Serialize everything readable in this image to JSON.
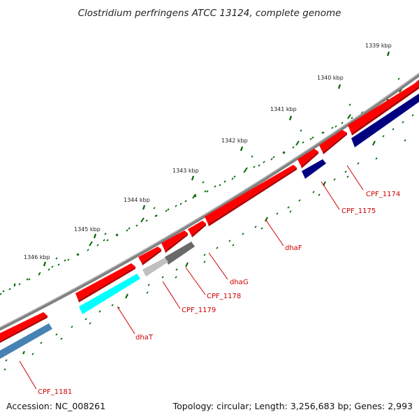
{
  "title": "Clostridium perfringens ATCC 13124, complete genome",
  "footer": {
    "accession": "Accession: NC_008261",
    "summary": "Topology: circular; Length: 3,256,683 bp; Genes: 2,993"
  },
  "colors": {
    "forward_gene": "#ff0000",
    "reverse_gene": "#000080",
    "reverse_gene_alt": "#4682b4",
    "cyan_gene": "#00ffff",
    "light_grey_gene": "#c0c0c0",
    "dark_grey_gene": "#696969",
    "backbone": "#808080",
    "ticks": "#006400",
    "label": "#cc0000"
  },
  "kbp_labels": [
    "1339 kbp",
    "1340 kbp",
    "1341 kbp",
    "1342 kbp",
    "1343 kbp",
    "1344 kbp",
    "1345 kbp",
    "1346 kbp"
  ],
  "gene_labels": [
    "CPF_1174",
    "CPF_1175",
    "dhaF",
    "dhaG",
    "CPF_1178",
    "CPF_1179",
    "dhaT",
    "CPF_1181"
  ]
}
